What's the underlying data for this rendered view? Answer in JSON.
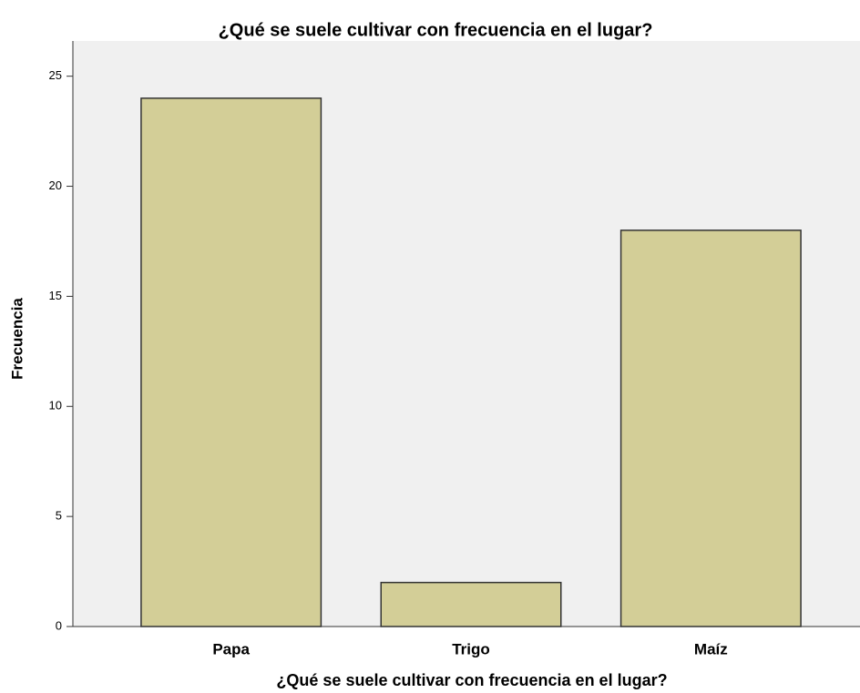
{
  "chart_data": {
    "type": "bar",
    "title": "¿Qué  se suele cultivar con frecuencia en el lugar?",
    "x_label": "¿Qué  se suele cultivar con frecuencia en el lugar?",
    "y_label": "Frecuencia",
    "categories": [
      "Papa",
      "Trigo",
      "Maíz"
    ],
    "values": [
      24,
      2,
      18
    ],
    "color": "#d3ce97",
    "ylim": [
      0,
      26.6
    ],
    "yticks": [
      0,
      5,
      10,
      15,
      20,
      25
    ],
    "grid": false
  }
}
